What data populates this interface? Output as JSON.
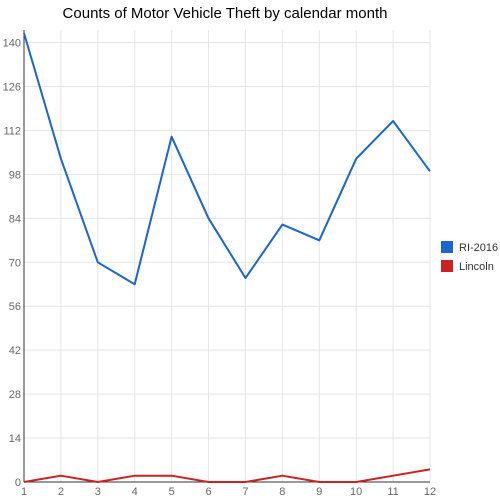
{
  "chart_data": {
    "type": "line",
    "title": "Counts of Motor Vehicle Theft by calendar month",
    "x": [
      1,
      2,
      3,
      4,
      5,
      6,
      7,
      8,
      9,
      10,
      11,
      12
    ],
    "x_ticks": [
      "1",
      "2",
      "3",
      "4",
      "5",
      "6",
      "7",
      "8",
      "9",
      "10",
      "11",
      "12"
    ],
    "y_ticks": [
      "0",
      "14",
      "28",
      "42",
      "56",
      "70",
      "84",
      "98",
      "112",
      "126",
      "140"
    ],
    "ylim": [
      0,
      144
    ],
    "grid": true,
    "legend_position": "right",
    "series": [
      {
        "name": "RI-2016",
        "color": "#1a66cc",
        "values": [
          143,
          103,
          70,
          63,
          110,
          84,
          65,
          82,
          77,
          103,
          115,
          99
        ]
      },
      {
        "name": "Lincoln",
        "color": "#cc2222",
        "values": [
          0,
          2,
          0,
          2,
          2,
          0,
          0,
          2,
          0,
          0,
          2,
          4
        ]
      }
    ]
  }
}
